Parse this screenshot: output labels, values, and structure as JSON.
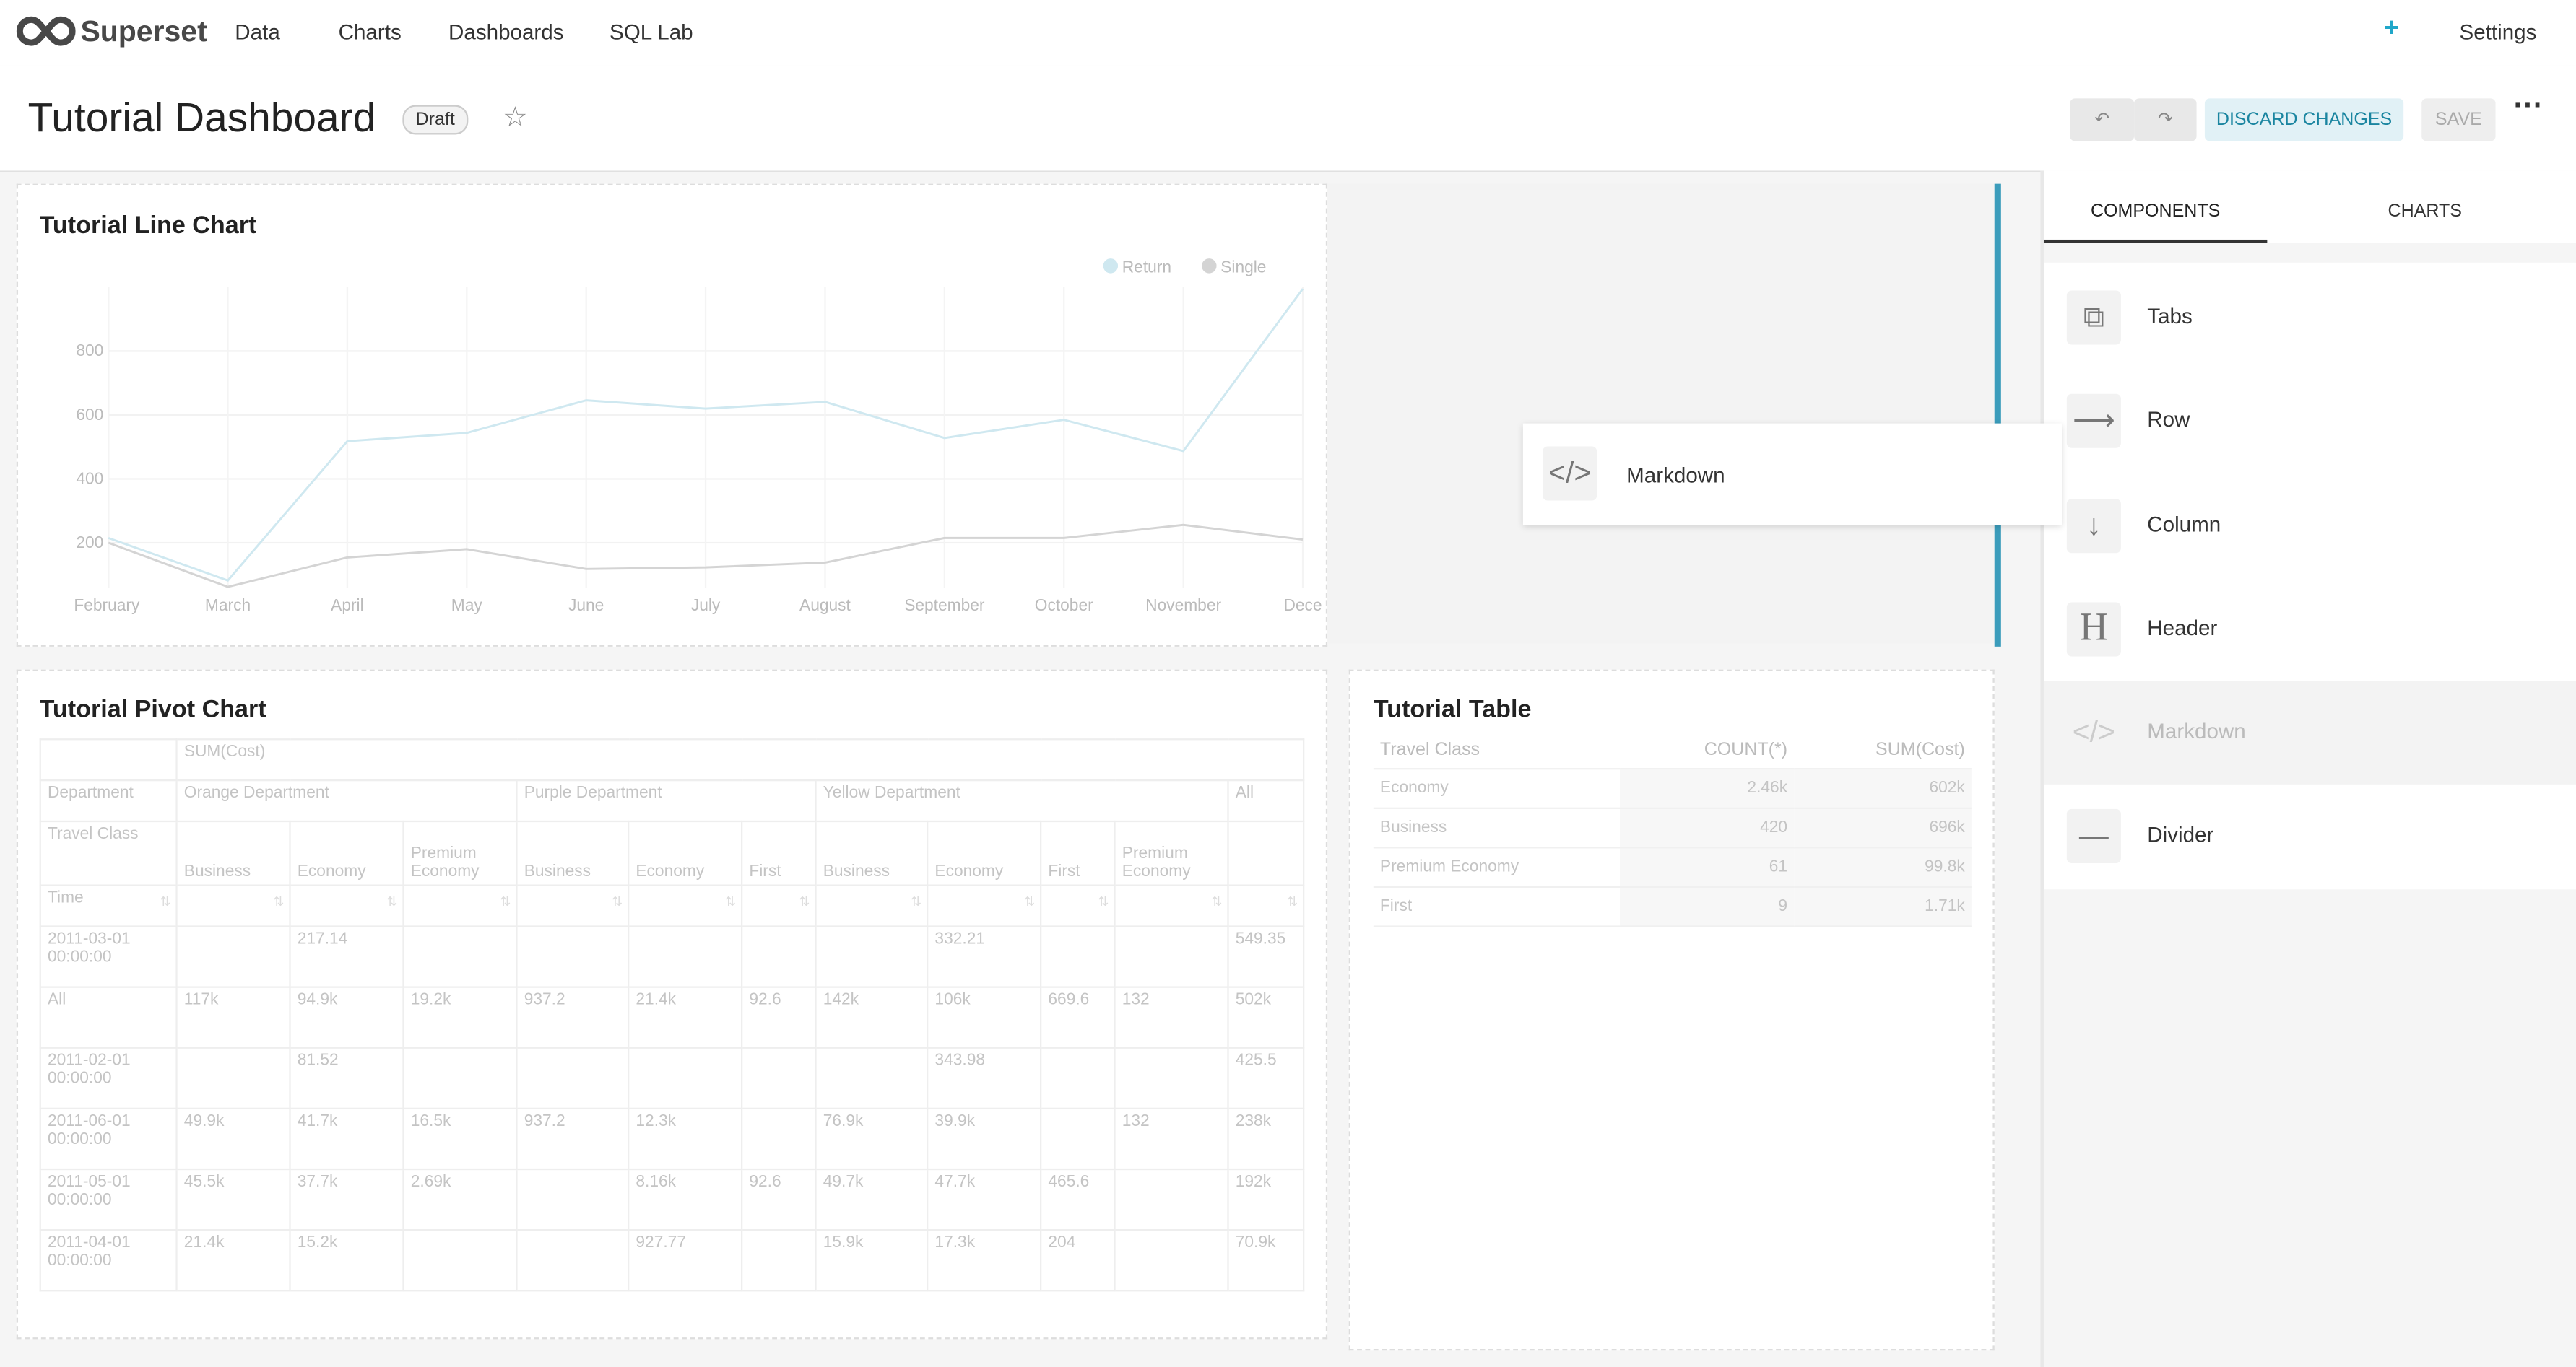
{
  "nav": {
    "brand": "Superset",
    "items": [
      "Data",
      "Charts",
      "Dashboards",
      "SQL Lab"
    ],
    "settings": "Settings"
  },
  "header": {
    "title": "Tutorial Dashboard",
    "status": "Draft",
    "discard": "DISCARD CHANGES",
    "save": "SAVE"
  },
  "chart_data": {
    "type": "line",
    "title": "Tutorial Line Chart",
    "categories": [
      "February",
      "March",
      "April",
      "May",
      "June",
      "July",
      "August",
      "September",
      "October",
      "November",
      "Dece"
    ],
    "series": [
      {
        "name": "Return",
        "color": "#cfe8f0",
        "values": [
          215,
          82,
          518,
          544,
          646,
          620,
          641,
          528,
          585,
          487,
          995
        ]
      },
      {
        "name": "Single",
        "color": "#d4d4d4",
        "values": [
          200,
          62,
          154,
          180,
          118,
          123,
          138,
          215,
          215,
          256,
          210
        ]
      }
    ],
    "ylim": [
      60,
      1000
    ],
    "yticks": [
      200,
      400,
      600,
      800
    ],
    "grid": true
  },
  "pivot": {
    "title": "Tutorial Pivot Chart",
    "metric": "SUM(Cost)",
    "dept_label": "Department",
    "class_label": "Travel Class",
    "time_label": "Time",
    "total_label": "All",
    "departments": [
      {
        "name": "Orange Department",
        "classes": [
          "Business",
          "Economy",
          "Premium Economy"
        ]
      },
      {
        "name": "Purple Department",
        "classes": [
          "Business",
          "Economy",
          "First"
        ]
      },
      {
        "name": "Yellow Department",
        "classes": [
          "Business",
          "Economy",
          "First",
          "Premium Economy"
        ]
      }
    ],
    "rows": [
      {
        "time": "2011-03-01 00:00:00",
        "cells": [
          null,
          "217.14",
          null,
          null,
          null,
          null,
          null,
          "332.21",
          null,
          null,
          "549.35"
        ]
      },
      {
        "time": "All",
        "cells": [
          "117k",
          "94.9k",
          "19.2k",
          "937.2",
          "21.4k",
          "92.6",
          "142k",
          "106k",
          "669.6",
          "132",
          "502k"
        ]
      },
      {
        "time": "2011-02-01 00:00:00",
        "cells": [
          null,
          "81.52",
          null,
          null,
          null,
          null,
          null,
          "343.98",
          null,
          null,
          "425.5"
        ]
      },
      {
        "time": "2011-06-01 00:00:00",
        "cells": [
          "49.9k",
          "41.7k",
          "16.5k",
          "937.2",
          "12.3k",
          null,
          "76.9k",
          "39.9k",
          null,
          "132",
          "238k"
        ]
      },
      {
        "time": "2011-05-01 00:00:00",
        "cells": [
          "45.5k",
          "37.7k",
          "2.69k",
          null,
          "8.16k",
          "92.6",
          "49.7k",
          "47.7k",
          "465.6",
          null,
          "192k"
        ]
      },
      {
        "time": "2011-04-01 00:00:00",
        "cells": [
          "21.4k",
          "15.2k",
          null,
          null,
          "927.77",
          null,
          "15.9k",
          "17.3k",
          "204",
          null,
          "70.9k"
        ]
      }
    ]
  },
  "table": {
    "title": "Tutorial Table",
    "columns": [
      "Travel Class",
      "COUNT(*)",
      "SUM(Cost)"
    ],
    "rows": [
      [
        "Economy",
        "2.46k",
        "602k"
      ],
      [
        "Business",
        "420",
        "696k"
      ],
      [
        "Premium Economy",
        "61",
        "99.8k"
      ],
      [
        "First",
        "9",
        "1.71k"
      ]
    ]
  },
  "sidebar": {
    "tabs": [
      "COMPONENTS",
      "CHARTS"
    ],
    "items": [
      "Tabs",
      "Row",
      "Column",
      "Header",
      "Markdown",
      "Divider"
    ],
    "dragging": "Markdown"
  }
}
